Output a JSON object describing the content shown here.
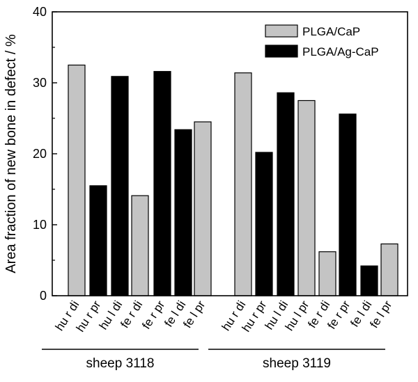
{
  "chart_data": {
    "type": "bar",
    "ylabel": "Area fraction of new bone in defect / %",
    "ylim": [
      0,
      40
    ],
    "yticks": [
      0,
      10,
      20,
      30,
      40
    ],
    "legend": {
      "placement": "top-right",
      "entries": [
        {
          "label": "PLGA/CaP",
          "color": "#c4c4c4"
        },
        {
          "label": "PLGA/Ag-CaP",
          "color": "#000000"
        }
      ]
    },
    "groups": [
      {
        "label": "sheep 3118",
        "bars": [
          {
            "category": "hu r di",
            "series": "PLGA/CaP",
            "value": 32.5
          },
          {
            "category": "hu r pr",
            "series": "PLGA/Ag-CaP",
            "value": 15.5
          },
          {
            "category": "hu l di",
            "series": "PLGA/Ag-CaP",
            "value": 30.9
          },
          {
            "category": "fe r di",
            "series": "PLGA/CaP",
            "value": 14.1
          },
          {
            "category": "fe r pr",
            "series": "PLGA/Ag-CaP",
            "value": 31.6
          },
          {
            "category": "fe l di",
            "series": "PLGA/Ag-CaP",
            "value": 23.4
          },
          {
            "category": "fe l pr",
            "series": "PLGA/CaP",
            "value": 24.5
          }
        ]
      },
      {
        "label": "sheep 3119",
        "bars": [
          {
            "category": "hu r di",
            "series": "PLGA/CaP",
            "value": 31.4
          },
          {
            "category": "hu r pr",
            "series": "PLGA/Ag-CaP",
            "value": 20.2
          },
          {
            "category": "hu l di",
            "series": "PLGA/Ag-CaP",
            "value": 28.6
          },
          {
            "category": "hu l pr",
            "series": "PLGA/CaP",
            "value": 27.5
          },
          {
            "category": "fe r di",
            "series": "PLGA/CaP",
            "value": 6.2
          },
          {
            "category": "fe r pr",
            "series": "PLGA/Ag-CaP",
            "value": 25.6
          },
          {
            "category": "fe l di",
            "series": "PLGA/Ag-CaP",
            "value": 4.2
          },
          {
            "category": "fe l pr",
            "series": "PLGA/CaP",
            "value": 7.3
          }
        ]
      }
    ]
  }
}
